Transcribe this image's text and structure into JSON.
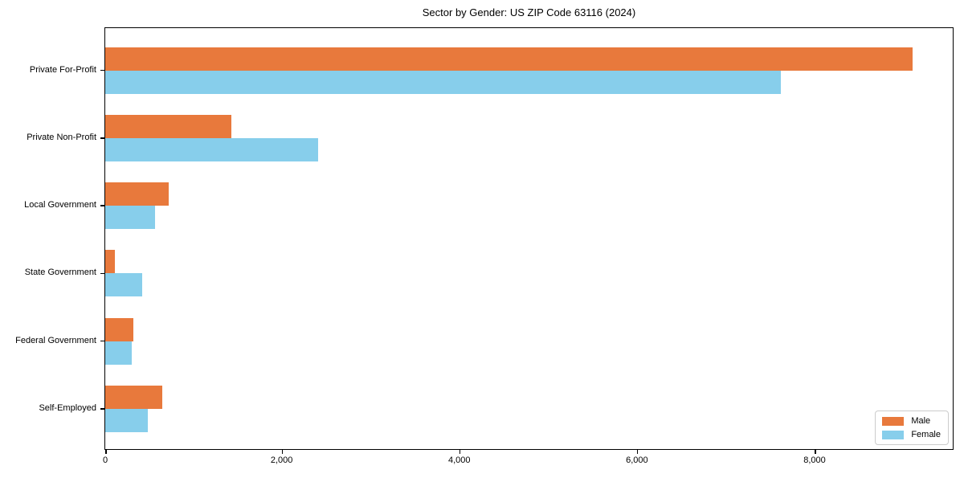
{
  "chart_data": {
    "type": "bar",
    "orientation": "horizontal",
    "title": "Sector by Gender: US ZIP Code 63116 (2024)",
    "xlabel": "",
    "ylabel": "",
    "categories": [
      "Private For-Profit",
      "Private Non-Profit",
      "Local Government",
      "State Government",
      "Federal Government",
      "Self-Employed"
    ],
    "series": [
      {
        "name": "Male",
        "color": "#E8793C",
        "values": [
          9090,
          1420,
          710,
          110,
          320,
          640
        ]
      },
      {
        "name": "Female",
        "color": "#87CEEB",
        "values": [
          7610,
          2400,
          560,
          420,
          300,
          480
        ]
      }
    ],
    "xlim": [
      0,
      9560
    ],
    "xticks": [
      0,
      2000,
      4000,
      6000,
      8000
    ],
    "xtick_labels": [
      "0",
      "2,000",
      "4,000",
      "6,000",
      "8,000"
    ],
    "grid": false,
    "legend_position": "lower right"
  },
  "colors": {
    "male": "#E8793C",
    "female": "#87CEEB",
    "axis": "#000000",
    "legend_border": "#cccccc",
    "background": "#ffffff"
  }
}
